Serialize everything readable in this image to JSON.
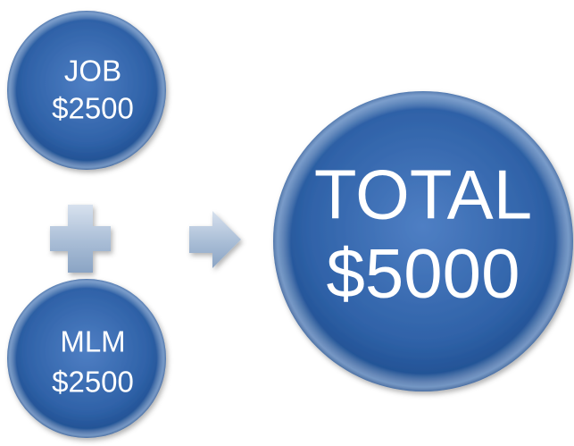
{
  "nodes": [
    {
      "label": "JOB",
      "value": "$2500"
    },
    {
      "label": "MLM",
      "value": "$2500"
    },
    {
      "label": "TOTAL",
      "value": "$5000"
    }
  ]
}
